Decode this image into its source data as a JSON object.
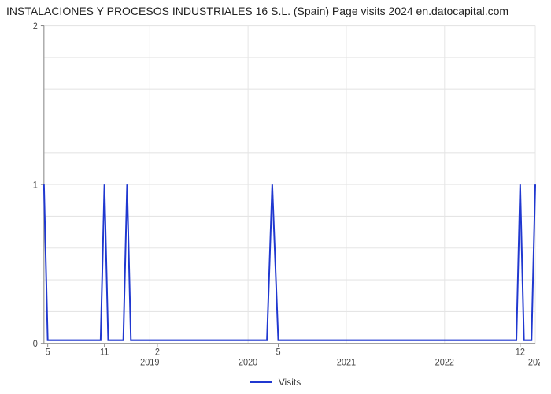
{
  "title": "INSTALACIONES Y PROCESOS INDUSTRIALES 16 S.L. (Spain) Page visits 2024 en.datocapital.com",
  "chart": {
    "type": "line",
    "background_color": "#ffffff",
    "grid_color": "#e5e5e5",
    "axis_color": "#888888",
    "title_fontsize": 14,
    "tick_fontsize": 11,
    "x": {
      "min": 0,
      "max": 65,
      "major_gridlines_at": [
        0,
        14,
        27,
        40,
        53,
        65
      ],
      "major_tick_labels": [
        "",
        "2019",
        "2020",
        "2021",
        "2022",
        "202"
      ],
      "secondary_ticks": [
        {
          "x": 0.5,
          "label": "5"
        },
        {
          "x": 8,
          "label": "11"
        },
        {
          "x": 15,
          "label": "2"
        },
        {
          "x": 31,
          "label": "5"
        },
        {
          "x": 63,
          "label": "12"
        }
      ]
    },
    "y": {
      "min": 0,
      "max": 2,
      "tick_values": [
        0,
        1,
        2
      ],
      "tick_labels": [
        "0",
        "1",
        "2"
      ],
      "minor_gridlines_between": 4
    },
    "series": [
      {
        "name": "Visits",
        "color": "#2038d0",
        "line_width": 2,
        "points": [
          [
            0.0,
            1.0
          ],
          [
            0.5,
            0.02
          ],
          [
            7.5,
            0.02
          ],
          [
            8.0,
            1.0
          ],
          [
            8.5,
            0.02
          ],
          [
            10.5,
            0.02
          ],
          [
            11.0,
            1.0
          ],
          [
            11.5,
            0.02
          ],
          [
            29.5,
            0.02
          ],
          [
            30.2,
            1.0
          ],
          [
            31.0,
            0.02
          ],
          [
            62.5,
            0.02
          ],
          [
            63.0,
            1.0
          ],
          [
            63.5,
            0.02
          ],
          [
            64.5,
            0.02
          ],
          [
            65.0,
            1.0
          ]
        ]
      }
    ],
    "legend": {
      "items": [
        {
          "label": "Visits",
          "color": "#2038d0"
        }
      ]
    }
  }
}
